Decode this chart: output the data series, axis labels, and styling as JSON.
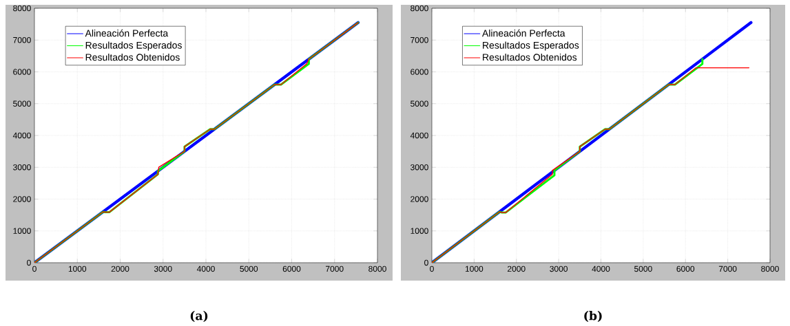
{
  "chart_data": [
    {
      "type": "line",
      "annotations": [
        "(a)"
      ],
      "xlim": [
        0,
        8000
      ],
      "ylim": [
        0,
        8000
      ],
      "xticks": [
        0,
        1000,
        2000,
        3000,
        4000,
        5000,
        6000,
        7000,
        8000
      ],
      "yticks": [
        0,
        1000,
        2000,
        3000,
        4000,
        5000,
        6000,
        7000,
        8000
      ],
      "grid": true,
      "legend": "top left",
      "series": [
        {
          "name": "Alineación Perfecta",
          "color": "#0000ff",
          "x": [
            0,
            7550
          ],
          "values": [
            0,
            7550
          ]
        },
        {
          "name": "Resultados Esperados",
          "color": "#00ff00",
          "x": [
            0,
            1600,
            1650,
            1750,
            2880,
            2880,
            3500,
            3500,
            4100,
            4200,
            5600,
            5650,
            5750,
            6400,
            6400,
            7550
          ],
          "values": [
            0,
            1600,
            1590,
            1590,
            2780,
            2880,
            3500,
            3650,
            4200,
            4200,
            5600,
            5600,
            5600,
            6250,
            6400,
            7550
          ]
        },
        {
          "name": "Resultados Obtenidos",
          "color": "#ff0000",
          "x": [
            0,
            1600,
            1650,
            1750,
            2880,
            2900,
            3500,
            3500,
            4100,
            4200,
            5600,
            5650,
            5750,
            6350,
            6400,
            7550
          ],
          "values": [
            0,
            1600,
            1590,
            1590,
            2780,
            3000,
            3500,
            3650,
            4200,
            4200,
            5600,
            5600,
            5600,
            6250,
            6400,
            7550
          ]
        }
      ]
    },
    {
      "type": "line",
      "annotations": [
        "(b)"
      ],
      "xlim": [
        0,
        8000
      ],
      "ylim": [
        0,
        8000
      ],
      "xticks": [
        0,
        1000,
        2000,
        3000,
        4000,
        5000,
        6000,
        7000,
        8000
      ],
      "yticks": [
        0,
        1000,
        2000,
        3000,
        4000,
        5000,
        6000,
        7000,
        8000
      ],
      "grid": true,
      "legend": "top left",
      "series": [
        {
          "name": "Alineación Perfecta",
          "color": "#0000ff",
          "x": [
            0,
            7550
          ],
          "values": [
            0,
            7550
          ]
        },
        {
          "name": "Resultados Esperados",
          "color": "#00ff00",
          "x": [
            0,
            1600,
            1650,
            1750,
            2900,
            2900,
            3500,
            3500,
            4100,
            4200,
            5600,
            5650,
            5750,
            6400,
            6400
          ],
          "values": [
            0,
            1600,
            1580,
            1580,
            2750,
            2900,
            3500,
            3650,
            4200,
            4200,
            5600,
            5600,
            5600,
            6250,
            6400
          ]
        },
        {
          "name": "Resultados Obtenidos",
          "color": "#ff0000",
          "x": [
            0,
            1600,
            1650,
            1750,
            2850,
            2850,
            3500,
            3500,
            4100,
            4200,
            5600,
            5650,
            5750,
            6250,
            7500
          ],
          "values": [
            0,
            1600,
            1580,
            1580,
            2780,
            2900,
            3500,
            3650,
            4200,
            4200,
            5600,
            5600,
            5600,
            6130,
            6130
          ]
        }
      ]
    }
  ]
}
